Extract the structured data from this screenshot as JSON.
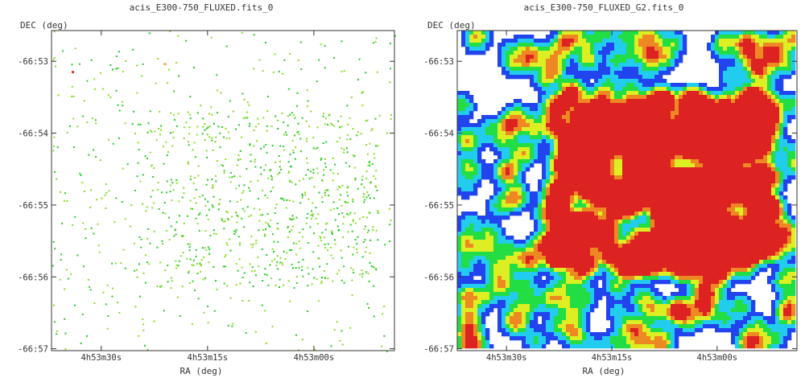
{
  "chart_data": [
    {
      "type": "scatter",
      "title": "acis_E300-750_FLUXED.fits_0",
      "xlabel": "RA (deg)",
      "ylabel": "DEC (deg)",
      "xticks": [
        "4h53m30s",
        "4h53m15s",
        "4h53m00s"
      ],
      "yticks": [
        "-66:53",
        "-66:54",
        "-66:55",
        "-66:56",
        "-66:57"
      ],
      "grid": false,
      "colormap": [
        "#22cc22",
        "#88dd22",
        "#eeaa22",
        "#dd3322"
      ],
      "bright_pixels": [
        {
          "x": "4h53m34s",
          "y": "-66:53.15",
          "color": "#dd3322"
        },
        {
          "x": "4h53m21s",
          "y": "-66:53.04",
          "color": "#eeaa22"
        }
      ]
    },
    {
      "type": "heatmap",
      "title": "acis_E300-750_FLUXED_G2.fits_0",
      "xlabel": "RA (deg)",
      "ylabel": "DEC (deg)",
      "xticks": [
        "4h53m30s",
        "4h53m15s",
        "4h53m00s"
      ],
      "yticks": [
        "-66:53",
        "-66:54",
        "-66:55",
        "-66:56",
        "-66:57"
      ],
      "grid": false,
      "colormap": [
        "#2244ee",
        "#22ccee",
        "#22dd44",
        "#ddee22",
        "#ee8822",
        "#dd2222"
      ]
    }
  ]
}
